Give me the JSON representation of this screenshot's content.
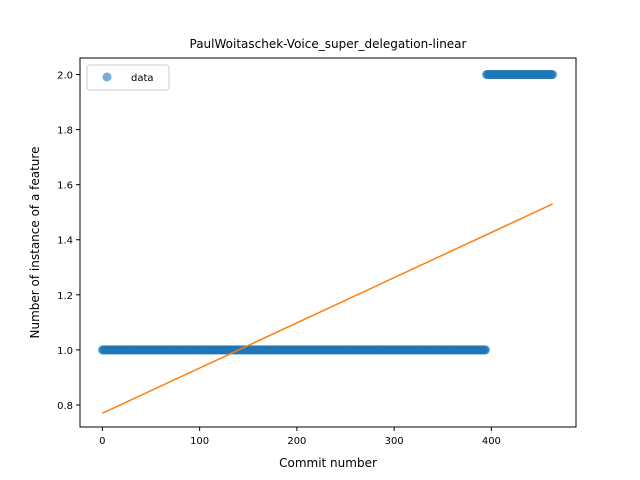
{
  "chart_data": {
    "type": "scatter",
    "title": "PaulWoitaschek-Voice_super_delegation-linear",
    "xlabel": "Commit number",
    "ylabel": "Number of instance of a feature",
    "xlim": [
      -23,
      487
    ],
    "ylim": [
      0.72,
      2.06
    ],
    "x_ticks": [
      0,
      100,
      200,
      300,
      400
    ],
    "y_ticks": [
      0.8,
      1.0,
      1.2,
      1.4,
      1.6,
      1.8,
      2.0
    ],
    "x_tick_labels": [
      "0",
      "100",
      "200",
      "300",
      "400"
    ],
    "y_tick_labels": [
      "0.8",
      "1.0",
      "1.2",
      "1.4",
      "1.6",
      "1.8",
      "2.0"
    ],
    "grid": false,
    "legend_position": "top-left",
    "series": [
      {
        "name": "data",
        "kind": "scatter",
        "color": "#1f77b4",
        "segments": [
          {
            "x_start": 0,
            "x_end": 394,
            "y": 1.0
          },
          {
            "x_start": 395,
            "x_end": 463,
            "y": 2.0
          }
        ]
      },
      {
        "kind": "line",
        "color": "#ff7f0e",
        "x": [
          0,
          463
        ],
        "y": [
          0.77,
          1.53
        ]
      }
    ]
  }
}
